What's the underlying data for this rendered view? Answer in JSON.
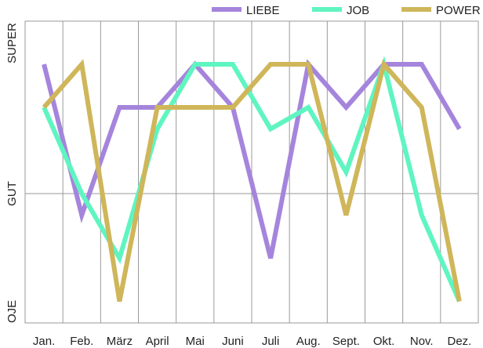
{
  "chart_data": {
    "type": "line",
    "title": "",
    "xlabel": "",
    "ylabel": "",
    "categories": [
      "Jan.",
      "Feb.",
      "März",
      "April",
      "Mai",
      "Juni",
      "Juli",
      "Aug.",
      "Sept.",
      "Okt.",
      "Nov.",
      "Dez."
    ],
    "y_ticks": [
      "OJE",
      "GUT",
      "SUPER"
    ],
    "ylim": [
      0,
      7
    ],
    "grid": true,
    "legend_position": "top-right",
    "series": [
      {
        "name": "LIEBE",
        "color": "#a585dc",
        "values": [
          6.0,
          2.5,
          5.0,
          5.0,
          6.0,
          5.0,
          1.5,
          6.0,
          5.0,
          6.0,
          6.0,
          4.5
        ]
      },
      {
        "name": "JOB",
        "color": "#5ff5c0",
        "values": [
          5.0,
          3.0,
          1.5,
          4.5,
          6.0,
          6.0,
          4.5,
          5.0,
          3.5,
          6.0,
          2.5,
          0.5
        ]
      },
      {
        "name": "POWER",
        "color": "#cfb65a",
        "values": [
          5.0,
          6.0,
          0.5,
          5.0,
          5.0,
          5.0,
          6.0,
          6.0,
          2.5,
          6.0,
          5.0,
          0.5
        ]
      }
    ]
  }
}
